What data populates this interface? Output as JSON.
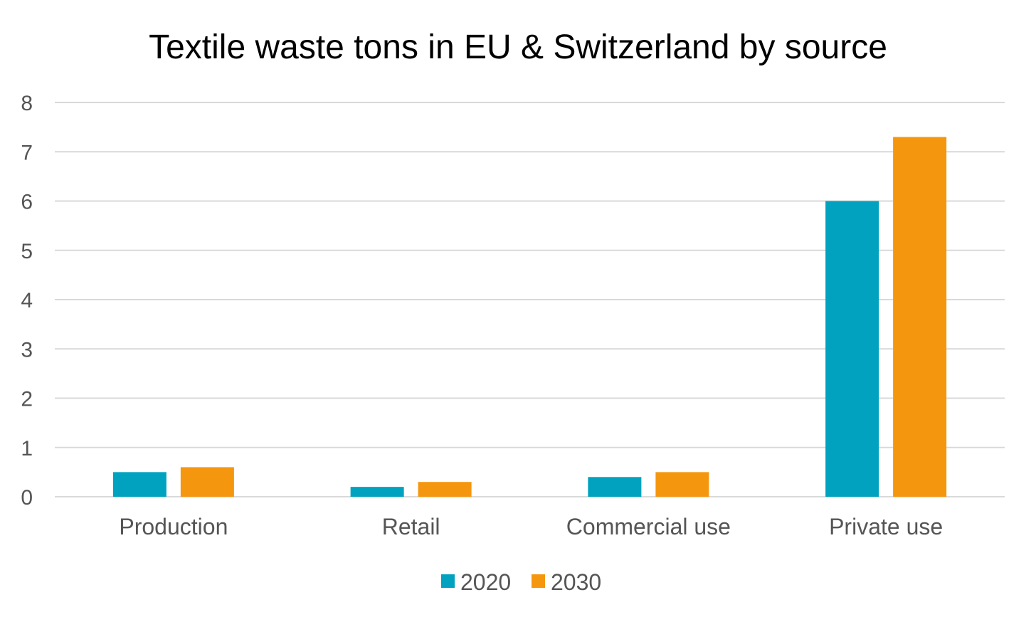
{
  "chart_data": {
    "type": "bar",
    "title": "Textile waste tons in EU & Switzerland by source",
    "categories": [
      "Production",
      "Retail",
      "Commercial use",
      "Private use"
    ],
    "series": [
      {
        "name": "2020",
        "values": [
          0.5,
          0.2,
          0.4,
          6.0
        ],
        "color": "#00a2c0"
      },
      {
        "name": "2030",
        "values": [
          0.6,
          0.3,
          0.5,
          7.3
        ],
        "color": "#f5960f"
      }
    ],
    "ylim": [
      0,
      8
    ],
    "yticks": [
      "0",
      "1",
      "2",
      "3",
      "4",
      "5",
      "6",
      "7",
      "8"
    ],
    "grid": true,
    "legend_position": "bottom"
  }
}
